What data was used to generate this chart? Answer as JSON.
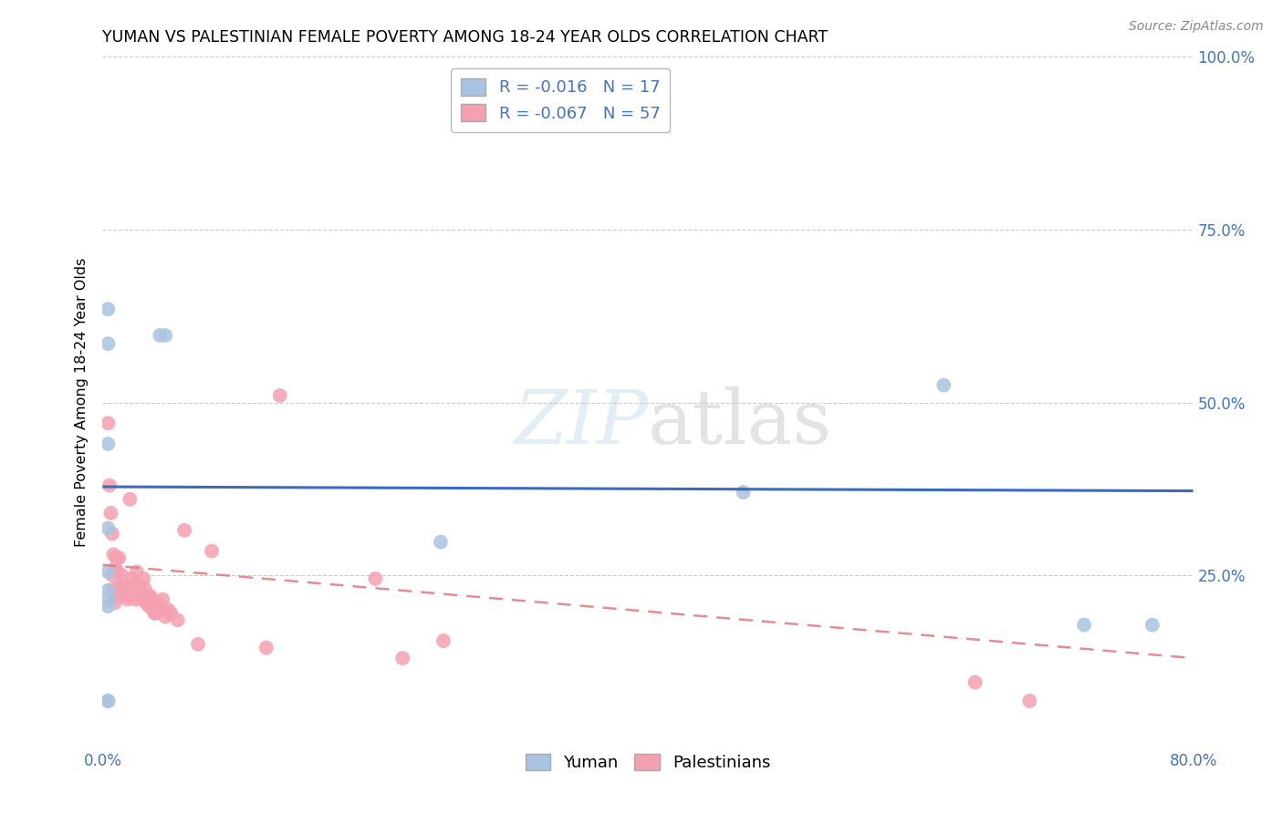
{
  "title": "YUMAN VS PALESTINIAN FEMALE POVERTY AMONG 18-24 YEAR OLDS CORRELATION CHART",
  "source": "Source: ZipAtlas.com",
  "ylabel": "Female Poverty Among 18-24 Year Olds",
  "xlim": [
    0.0,
    0.8
  ],
  "ylim": [
    0.0,
    1.0
  ],
  "yuman_R": -0.016,
  "yuman_N": 17,
  "palest_R": -0.067,
  "palest_N": 57,
  "yuman_color": "#a8c4e0",
  "palest_color": "#f4a0b0",
  "trendline_yuman_color": "#3a6bbf",
  "trendline_palest_color": "#e07880",
  "grid_color": "#cccccc",
  "yuman_x": [
    0.004,
    0.004,
    0.042,
    0.046,
    0.004,
    0.004,
    0.004,
    0.004,
    0.004,
    0.004,
    0.004,
    0.248,
    0.47,
    0.617,
    0.72,
    0.77,
    0.004
  ],
  "yuman_y": [
    0.635,
    0.585,
    0.597,
    0.597,
    0.44,
    0.318,
    0.255,
    0.228,
    0.215,
    0.205,
    0.068,
    0.298,
    0.37,
    0.525,
    0.178,
    0.178,
    0.068
  ],
  "palest_x": [
    0.004,
    0.005,
    0.006,
    0.007,
    0.007,
    0.008,
    0.008,
    0.009,
    0.009,
    0.01,
    0.01,
    0.011,
    0.012,
    0.013,
    0.014,
    0.015,
    0.016,
    0.017,
    0.018,
    0.019,
    0.02,
    0.021,
    0.022,
    0.023,
    0.024,
    0.025,
    0.026,
    0.027,
    0.028,
    0.029,
    0.03,
    0.031,
    0.032,
    0.033,
    0.034,
    0.035,
    0.036,
    0.037,
    0.038,
    0.039,
    0.04,
    0.042,
    0.044,
    0.046,
    0.048,
    0.05,
    0.055,
    0.06,
    0.07,
    0.08,
    0.12,
    0.13,
    0.2,
    0.22,
    0.25,
    0.64,
    0.68
  ],
  "palest_y": [
    0.47,
    0.38,
    0.34,
    0.31,
    0.25,
    0.28,
    0.23,
    0.26,
    0.21,
    0.275,
    0.22,
    0.255,
    0.275,
    0.235,
    0.25,
    0.235,
    0.235,
    0.22,
    0.215,
    0.22,
    0.36,
    0.245,
    0.235,
    0.225,
    0.215,
    0.255,
    0.22,
    0.235,
    0.225,
    0.215,
    0.245,
    0.23,
    0.21,
    0.22,
    0.205,
    0.22,
    0.215,
    0.2,
    0.195,
    0.195,
    0.21,
    0.205,
    0.215,
    0.19,
    0.2,
    0.195,
    0.185,
    0.315,
    0.15,
    0.285,
    0.145,
    0.51,
    0.245,
    0.13,
    0.155,
    0.095,
    0.068
  ],
  "yuman_trend_x": [
    0.0,
    0.8
  ],
  "yuman_trend_y": [
    0.378,
    0.372
  ],
  "palest_trend_x": [
    0.0,
    0.8
  ],
  "palest_trend_y": [
    0.265,
    0.13
  ]
}
